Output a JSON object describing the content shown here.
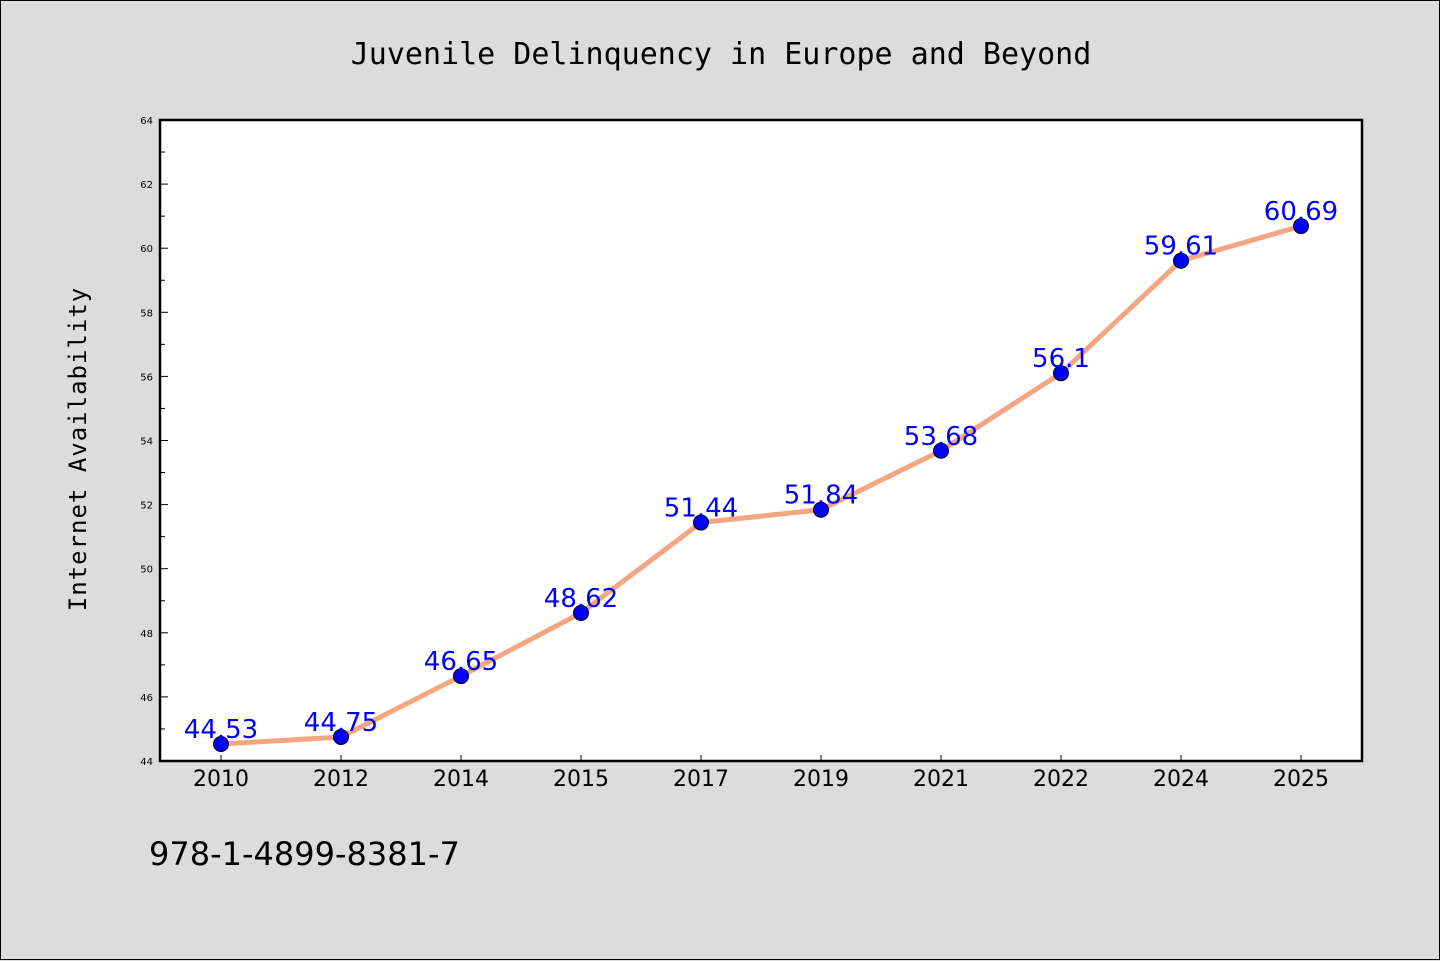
{
  "chart_data": {
    "type": "line",
    "title": "Juvenile Delinquency in Europe and Beyond",
    "xlabel": "",
    "ylabel": "Internet Availability",
    "categories": [
      "2010",
      "2012",
      "2014",
      "2015",
      "2017",
      "2019",
      "2021",
      "2022",
      "2024",
      "2025"
    ],
    "series": [
      {
        "values": [
          44.53,
          44.75,
          46.65,
          48.62,
          51.44,
          51.84,
          53.68,
          56.1,
          59.61,
          60.69
        ],
        "data_labels": [
          "44.53",
          "44.75",
          "46.65",
          "48.62",
          "51.44",
          "51.84",
          "53.68",
          "56.1",
          "59.61",
          "60.69"
        ],
        "line_color": "#f4a582",
        "marker_color": "#0000ff"
      }
    ],
    "ylim": [
      44,
      64
    ],
    "yticks": [
      "44",
      "46",
      "48",
      "50",
      "52",
      "54",
      "56",
      "58",
      "60",
      "62",
      "64"
    ],
    "grid": false,
    "background_color": "#dcdcdc",
    "plot_background_color": "#ffffff",
    "label_color": "#0000ff"
  },
  "footer": {
    "isbn": "978-1-4899-8381-7"
  }
}
